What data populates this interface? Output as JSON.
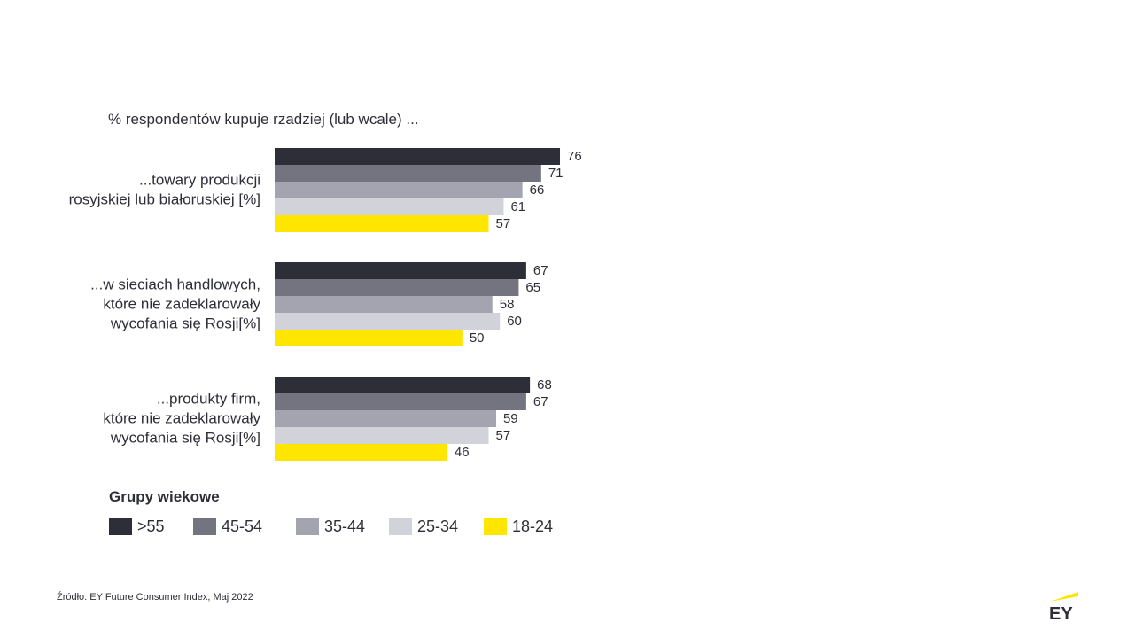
{
  "chart_data": {
    "type": "bar",
    "orientation": "horizontal",
    "title": "% respondentów kupuje rzadziej (lub wcale) ...",
    "categories": [
      [
        "...towary produkcji",
        "rosyjskiej lub białoruskiej [%]"
      ],
      [
        "...w sieciach handlowych,",
        "które nie zadeklarowały",
        "wycofania się Rosji[%]"
      ],
      [
        "...produkty firm,",
        "które nie zadeklarowały",
        "wycofania się Rosji[%]"
      ]
    ],
    "series": [
      {
        "name": ">55",
        "color": "#2e2e38",
        "values": [
          76,
          67,
          68
        ]
      },
      {
        "name": "45-54",
        "color": "#747480",
        "values": [
          71,
          65,
          67
        ]
      },
      {
        "name": "35-44",
        "color": "#a4a3b0",
        "values": [
          66,
          58,
          59
        ]
      },
      {
        "name": "25-34",
        "color": "#d2d2da",
        "values": [
          61,
          60,
          57
        ]
      },
      {
        "name": "18-24",
        "color": "#ffe600",
        "values": [
          57,
          50,
          46
        ]
      }
    ],
    "xlim": [
      0,
      100
    ],
    "grid": false,
    "data_labels": true,
    "legend": {
      "title": "Grupy wiekowe",
      "placement": "bottom-left"
    }
  },
  "source": "Źródło: EY Future Consumer Index, Maj 2022",
  "logo": {
    "text": "EY",
    "accent_color": "#ffe600"
  }
}
